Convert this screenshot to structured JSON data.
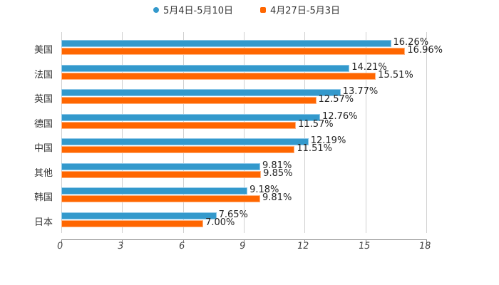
{
  "chart_data": {
    "type": "bar",
    "orientation": "horizontal",
    "title": "",
    "xlabel": "",
    "ylabel": "",
    "xlim": [
      0,
      18
    ],
    "x_ticks": [
      "0",
      "3",
      "6",
      "9",
      "12",
      "15",
      "18"
    ],
    "grid": true,
    "legend_position": "top",
    "categories": [
      "美国",
      "法国",
      "英国",
      "德国",
      "中国",
      "其他",
      "韩国",
      "日本"
    ],
    "series": [
      {
        "name": "5月4日-5月10日",
        "color": "#3399cc",
        "marker": "circle",
        "values": [
          16.26,
          14.21,
          13.77,
          12.76,
          12.19,
          9.81,
          9.18,
          7.65
        ],
        "labels": [
          "16.26%",
          "14.21%",
          "13.77%",
          "12.76%",
          "12.19%",
          "9.81%",
          "9.18%",
          "7.65%"
        ]
      },
      {
        "name": "4月27日-5月3日",
        "color": "#ff6600",
        "marker": "square",
        "values": [
          16.96,
          15.51,
          12.57,
          11.57,
          11.51,
          9.85,
          9.81,
          7.0
        ],
        "labels": [
          "16.96%",
          "15.51%",
          "12.57%",
          "11.57%",
          "11.51%",
          "9.85%",
          "9.81%",
          "7.00%"
        ]
      }
    ]
  },
  "legend": {
    "items": [
      {
        "label": "5月4日-5月10日",
        "color": "#3399cc"
      },
      {
        "label": "4月27日-5月3日",
        "color": "#ff6600"
      }
    ]
  }
}
